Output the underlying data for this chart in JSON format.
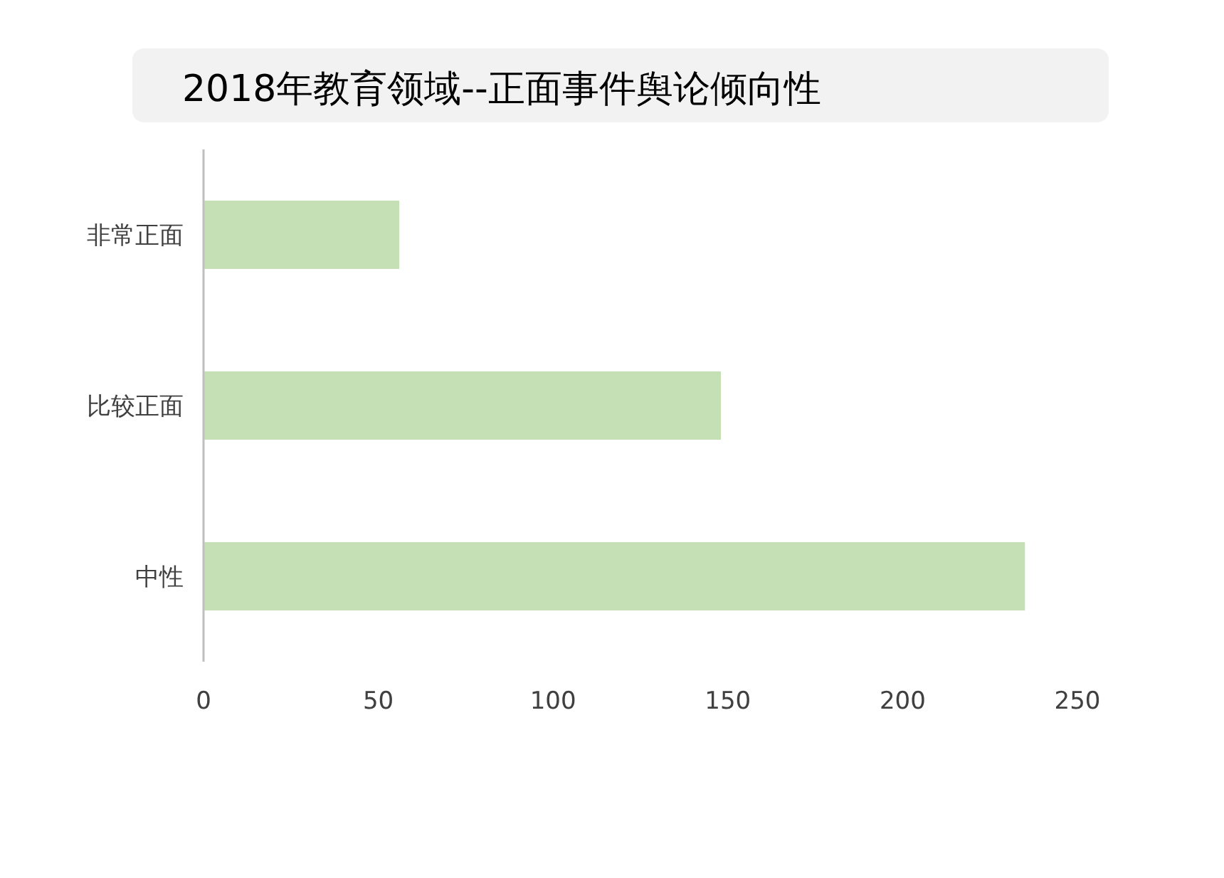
{
  "chart_data": {
    "type": "bar",
    "orientation": "horizontal",
    "title": "2018年教育领域--正面事件舆论倾向性",
    "categories": [
      "非常正面",
      "比较正面",
      "中性"
    ],
    "values": [
      56,
      148,
      235
    ],
    "color": "#c5e0b4",
    "xlim": [
      0,
      250
    ],
    "xticks": [
      0,
      50,
      100,
      150,
      200,
      250
    ],
    "grid": false
  }
}
